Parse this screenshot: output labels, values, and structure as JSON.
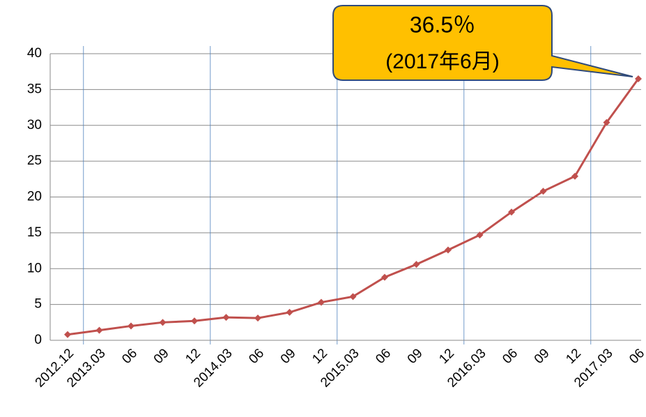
{
  "chart_data": {
    "type": "line",
    "categories": [
      "2012.12",
      "2013.03",
      "06",
      "09",
      "12",
      "2014.03",
      "06",
      "09",
      "12",
      "2015.03",
      "06",
      "09",
      "12",
      "2016.03",
      "06",
      "09",
      "12",
      "2017.03",
      "06"
    ],
    "series": [
      {
        "color": "#c0504d",
        "values": [
          0.8,
          1.4,
          2.0,
          2.5,
          2.7,
          3.2,
          3.1,
          3.9,
          5.3,
          6.1,
          8.8,
          10.6,
          12.6,
          14.7,
          17.9,
          20.8,
          22.9,
          30.4,
          36.5
        ]
      }
    ],
    "ylim": [
      0,
      40
    ],
    "yticks": [
      0,
      5,
      10,
      15,
      20,
      25,
      30,
      35,
      40
    ],
    "grid": true,
    "annotations": [
      "36.5％",
      "(2017年6月)"
    ]
  }
}
